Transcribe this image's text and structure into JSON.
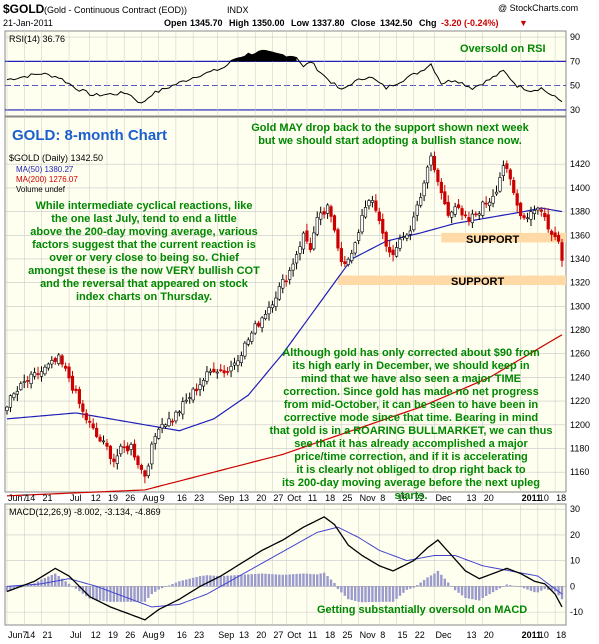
{
  "header": {
    "symbol": "$GOLD",
    "name": "(Gold - Continuous Contract (EOD))",
    "exchange": "INDX",
    "date": "21-Jan-2011",
    "open_label": "Open",
    "open": "1345.70",
    "high_label": "High",
    "high": "1350.00",
    "low_label": "Low",
    "low": "1337.80",
    "close_label": "Close",
    "close": "1342.50",
    "chg_label": "Chg",
    "chg": "-3.20 (-0.24%)",
    "chg_arrow": "▼",
    "copyright": "@ StockCharts.com"
  },
  "colors": {
    "background": "#fffff0",
    "grid": "#c8c8c8",
    "price_up": "#000000",
    "price_down": "#cc0000",
    "ma50": "#1f1fb8",
    "ma200": "#cc0000",
    "rsi_fill": "#000000",
    "support_zone": "#ffd9a6",
    "annotation_text": "#008800",
    "title_text": "#1a5fd0",
    "macd_line": "#000000",
    "signal_line": "#4444cc",
    "histogram": "#9a9acd"
  },
  "rsi_panel": {
    "legend": "RSI(14) 36.76",
    "annotation": "Oversold on RSI",
    "ticks": [
      "90",
      "70",
      "50",
      "30"
    ]
  },
  "price_panel": {
    "title": "GOLD: 8-month Chart",
    "legend_main": "$GOLD (Daily) 1342.50",
    "legend_ma50": "MA(50) 1380.27",
    "legend_ma200": "MA(200) 1276.07",
    "legend_volume": "Volume undef",
    "top_note": "Gold MAY drop back to the support shown next week but we should start adopting a bullish stance now.",
    "left_note": "While intermediate cyclical reactions, like the one last July, tend to end a little above the 200-day moving average, various factors suggest that the current reaction is over or very close to being so. Chief amongst these is the now VERY bullish COT and the reversal that appeared on stock index charts on Thursday.",
    "bottom_note": "Although gold has only corrected about $90 from its high early in December, we should keep in mind that we have also seen a major TIME correction. Since gold has made no net progress from mid-October, it can be seen to have been in corrective mode since that time. Bearing in mind that gold is in a ROARING BULLMARKET, we can thus see that it has already accomplished a major price/time correction, and if it is accelerating it is clearly not obliged to drop right back to its 200-day moving average before the next upleg starts.",
    "support1_label": "SUPPORT",
    "support2_label": "SUPPORT",
    "ticks": [
      "1420",
      "1400",
      "1380",
      "1360",
      "1340",
      "1320",
      "1300",
      "1280",
      "1260",
      "1240",
      "1220",
      "1200",
      "1180",
      "1160"
    ]
  },
  "macd_panel": {
    "legend": "MACD(12,26,9) -8.002, -3.134, -4.869",
    "annotation": "Getting substantially oversold on MACD",
    "ticks": [
      "30",
      "20",
      "10",
      "0",
      "-10"
    ]
  },
  "x_axis_labels": [
    {
      "t": "Jun7",
      "d": 0
    },
    {
      "t": "14",
      "d": 5
    },
    {
      "t": "21",
      "d": 10
    },
    {
      "t": "Jul",
      "d": 18
    },
    {
      "t": "12",
      "d": 24
    },
    {
      "t": "19",
      "d": 29
    },
    {
      "t": "26",
      "d": 34
    },
    {
      "t": "Aug",
      "d": 39
    },
    {
      "t": "9",
      "d": 44
    },
    {
      "t": "16",
      "d": 49
    },
    {
      "t": "23",
      "d": 54
    },
    {
      "t": "Sep",
      "d": 61
    },
    {
      "t": "13",
      "d": 67
    },
    {
      "t": "20",
      "d": 72
    },
    {
      "t": "27",
      "d": 77
    },
    {
      "t": "Oct",
      "d": 81
    },
    {
      "t": "11",
      "d": 87
    },
    {
      "t": "18",
      "d": 92
    },
    {
      "t": "25",
      "d": 97
    },
    {
      "t": "Nov",
      "d": 102
    },
    {
      "t": "8",
      "d": 108
    },
    {
      "t": "15",
      "d": 113
    },
    {
      "t": "22",
      "d": 118
    },
    {
      "t": "Dec",
      "d": 124
    },
    {
      "t": "13",
      "d": 133
    },
    {
      "t": "20",
      "d": 138
    },
    {
      "t": "2011",
      "d": 149
    },
    {
      "t": "10",
      "d": 154
    },
    {
      "t": "18",
      "d": 159
    }
  ],
  "chart_data": {
    "type": "line",
    "title": "GOLD: 8-month Chart",
    "price_range": [
      1150,
      1432
    ],
    "rsi_range": [
      25,
      95
    ],
    "macd_range": [
      -15,
      32
    ],
    "close_keypoints": [
      [
        0,
        1218
      ],
      [
        5,
        1235
      ],
      [
        10,
        1245
      ],
      [
        15,
        1255
      ],
      [
        18,
        1240
      ],
      [
        22,
        1210
      ],
      [
        26,
        1190
      ],
      [
        29,
        1180
      ],
      [
        31,
        1170
      ],
      [
        33,
        1178
      ],
      [
        36,
        1182
      ],
      [
        39,
        1162
      ],
      [
        40,
        1158
      ],
      [
        42,
        1180
      ],
      [
        44,
        1200
      ],
      [
        48,
        1205
      ],
      [
        52,
        1220
      ],
      [
        56,
        1235
      ],
      [
        60,
        1248
      ],
      [
        64,
        1245
      ],
      [
        68,
        1262
      ],
      [
        72,
        1282
      ],
      [
        76,
        1300
      ],
      [
        79,
        1315
      ],
      [
        82,
        1330
      ],
      [
        84,
        1345
      ],
      [
        86,
        1360
      ],
      [
        88,
        1350
      ],
      [
        90,
        1372
      ],
      [
        93,
        1382
      ],
      [
        95,
        1365
      ],
      [
        97,
        1340
      ],
      [
        99,
        1338
      ],
      [
        101,
        1350
      ],
      [
        103,
        1378
      ],
      [
        105,
        1392
      ],
      [
        107,
        1380
      ],
      [
        109,
        1360
      ],
      [
        111,
        1345
      ],
      [
        113,
        1348
      ],
      [
        115,
        1358
      ],
      [
        117,
        1365
      ],
      [
        119,
        1385
      ],
      [
        121,
        1405
      ],
      [
        123,
        1425
      ],
      [
        124,
        1415
      ],
      [
        126,
        1395
      ],
      [
        128,
        1380
      ],
      [
        130,
        1385
      ],
      [
        132,
        1375
      ],
      [
        134,
        1372
      ],
      [
        136,
        1378
      ],
      [
        138,
        1385
      ],
      [
        140,
        1390
      ],
      [
        142,
        1400
      ],
      [
        144,
        1420
      ],
      [
        146,
        1405
      ],
      [
        148,
        1385
      ],
      [
        150,
        1375
      ],
      [
        152,
        1380
      ],
      [
        154,
        1385
      ],
      [
        156,
        1375
      ],
      [
        158,
        1360
      ],
      [
        160,
        1355
      ],
      [
        161,
        1342
      ]
    ],
    "ma50_keypoints": [
      [
        0,
        1205
      ],
      [
        20,
        1210
      ],
      [
        40,
        1200
      ],
      [
        50,
        1195
      ],
      [
        60,
        1205
      ],
      [
        70,
        1225
      ],
      [
        80,
        1260
      ],
      [
        90,
        1300
      ],
      [
        100,
        1340
      ],
      [
        110,
        1355
      ],
      [
        120,
        1362
      ],
      [
        130,
        1370
      ],
      [
        140,
        1375
      ],
      [
        150,
        1380
      ],
      [
        155,
        1383
      ],
      [
        161,
        1380
      ]
    ],
    "ma200_keypoints": [
      [
        0,
        1140
      ],
      [
        40,
        1145
      ],
      [
        80,
        1175
      ],
      [
        100,
        1195
      ],
      [
        120,
        1215
      ],
      [
        140,
        1240
      ],
      [
        161,
        1276
      ]
    ],
    "rsi_keypoints": [
      [
        0,
        55
      ],
      [
        10,
        60
      ],
      [
        15,
        57
      ],
      [
        20,
        48
      ],
      [
        25,
        42
      ],
      [
        30,
        43
      ],
      [
        35,
        44
      ],
      [
        39,
        35
      ],
      [
        42,
        43
      ],
      [
        48,
        50
      ],
      [
        55,
        58
      ],
      [
        60,
        62
      ],
      [
        63,
        65
      ],
      [
        66,
        72
      ],
      [
        70,
        76
      ],
      [
        74,
        78
      ],
      [
        78,
        76
      ],
      [
        81,
        75
      ],
      [
        84,
        74
      ],
      [
        86,
        65
      ],
      [
        88,
        70
      ],
      [
        92,
        58
      ],
      [
        97,
        46
      ],
      [
        100,
        52
      ],
      [
        105,
        58
      ],
      [
        110,
        48
      ],
      [
        115,
        55
      ],
      [
        120,
        62
      ],
      [
        123,
        68
      ],
      [
        126,
        52
      ],
      [
        130,
        55
      ],
      [
        135,
        48
      ],
      [
        140,
        55
      ],
      [
        144,
        62
      ],
      [
        148,
        50
      ],
      [
        152,
        46
      ],
      [
        155,
        48
      ],
      [
        158,
        42
      ],
      [
        161,
        37
      ]
    ],
    "macd_keypoints": [
      [
        0,
        -2
      ],
      [
        8,
        2
      ],
      [
        14,
        7
      ],
      [
        18,
        4
      ],
      [
        24,
        -4
      ],
      [
        30,
        -8
      ],
      [
        36,
        -11
      ],
      [
        40,
        -13
      ],
      [
        44,
        -9
      ],
      [
        50,
        -5
      ],
      [
        56,
        0
      ],
      [
        62,
        4
      ],
      [
        68,
        9
      ],
      [
        74,
        14
      ],
      [
        80,
        18
      ],
      [
        86,
        23
      ],
      [
        92,
        27
      ],
      [
        95,
        24
      ],
      [
        99,
        16
      ],
      [
        103,
        12
      ],
      [
        108,
        8
      ],
      [
        112,
        6
      ],
      [
        118,
        10
      ],
      [
        122,
        15
      ],
      [
        125,
        18
      ],
      [
        129,
        12
      ],
      [
        133,
        6
      ],
      [
        137,
        3
      ],
      [
        141,
        5
      ],
      [
        145,
        7
      ],
      [
        149,
        5
      ],
      [
        153,
        2
      ],
      [
        156,
        1
      ],
      [
        159,
        -3
      ],
      [
        161,
        -8
      ]
    ],
    "signal_keypoints": [
      [
        0,
        0
      ],
      [
        10,
        1
      ],
      [
        18,
        3
      ],
      [
        26,
        0
      ],
      [
        34,
        -4
      ],
      [
        42,
        -8
      ],
      [
        50,
        -7
      ],
      [
        58,
        -3
      ],
      [
        66,
        3
      ],
      [
        74,
        9
      ],
      [
        82,
        15
      ],
      [
        90,
        21
      ],
      [
        96,
        23
      ],
      [
        102,
        19
      ],
      [
        108,
        14
      ],
      [
        116,
        10
      ],
      [
        124,
        12
      ],
      [
        130,
        12
      ],
      [
        138,
        8
      ],
      [
        146,
        6
      ],
      [
        154,
        4
      ],
      [
        161,
        -3
      ]
    ],
    "support_zones": [
      [
        1354,
        1362
      ],
      [
        1318,
        1326
      ]
    ]
  }
}
